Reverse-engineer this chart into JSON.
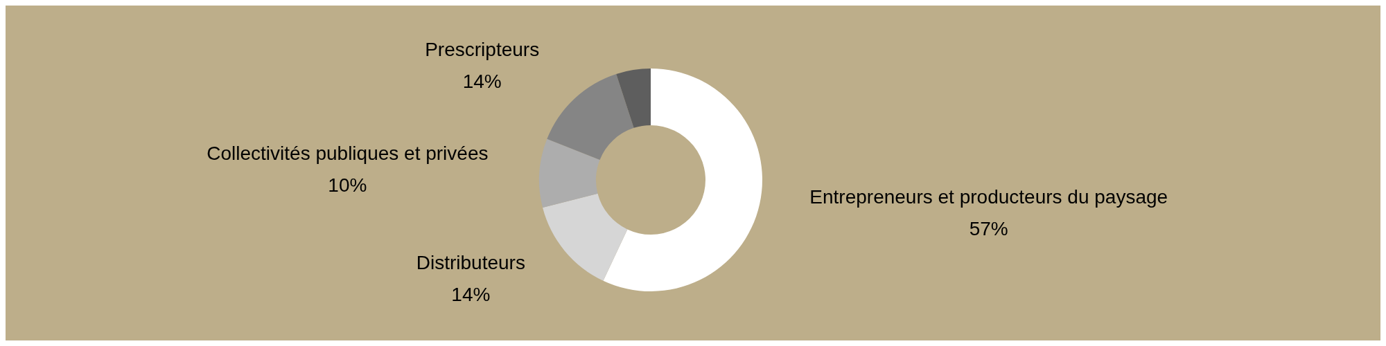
{
  "chart_data": {
    "type": "donut",
    "categories": [
      "Entrepreneurs et producteurs du paysage",
      "Distributeurs",
      "Collectivités publiques et privées",
      "Prescripteurs",
      null
    ],
    "values": [
      57,
      14,
      10,
      14,
      5
    ],
    "colors": [
      "#ffffff",
      "#d6d6d6",
      "#adadad",
      "#858585",
      "#5e5e5e"
    ],
    "value_labels": [
      "57%",
      "14%",
      "10%",
      "14%",
      null
    ]
  }
}
